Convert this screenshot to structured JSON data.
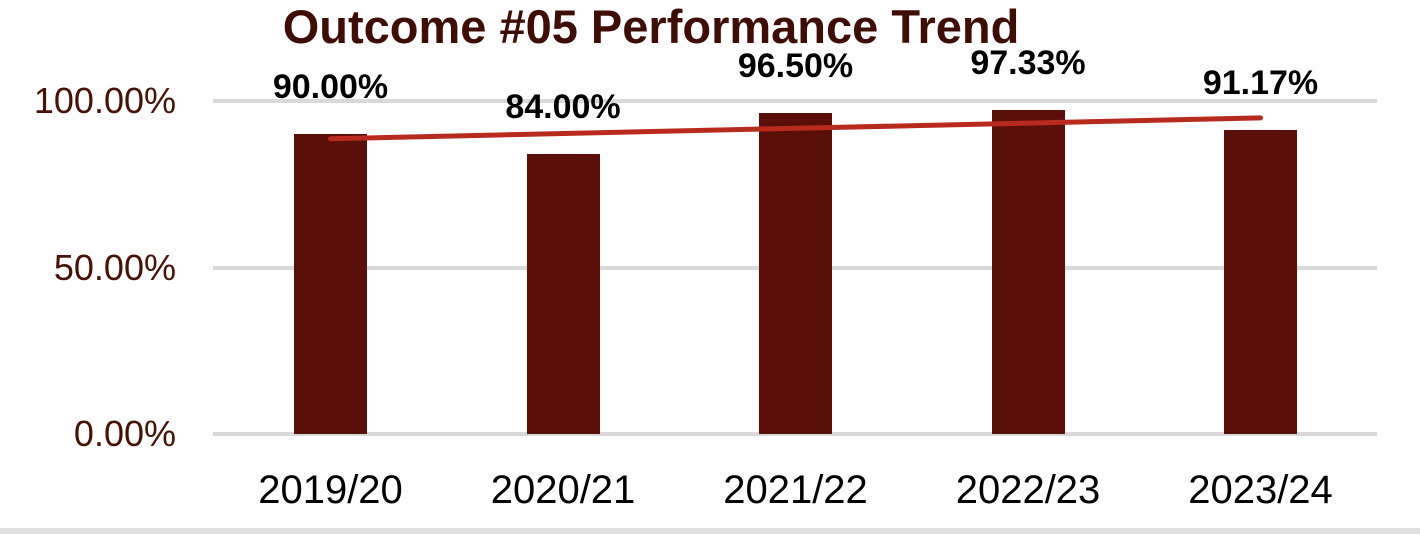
{
  "chart_data": {
    "type": "bar",
    "title": "Outcome #05 Performance Trend",
    "categories": [
      "2019/20",
      "2020/21",
      "2021/22",
      "2022/23",
      "2023/24"
    ],
    "values": [
      90.0,
      84.0,
      96.5,
      97.33,
      91.17
    ],
    "data_labels": [
      "90.00%",
      "84.00%",
      "96.50%",
      "97.33%",
      "91.17%"
    ],
    "xlabel": "",
    "ylabel": "",
    "y_axis": {
      "range": [
        0,
        100
      ],
      "ticks": [
        {
          "label": "0.00%",
          "value": 0
        },
        {
          "label": "50.00%",
          "value": 50
        },
        {
          "label": "100.00%",
          "value": 100
        }
      ]
    },
    "grid": true,
    "legend": "none",
    "trendline": {
      "type": "linear",
      "start_value": 88.67,
      "end_value": 94.93
    },
    "colors": {
      "background": "#ffffff",
      "bar": "#5a0f08",
      "trendline": "#b92a1e",
      "title": "#400d06",
      "axis_labels": "#471106",
      "x_tick_labels": "#000000",
      "data_labels": "#000000",
      "gridline": "#d9d9d9",
      "bottom_border": "#e0e0e0"
    }
  }
}
